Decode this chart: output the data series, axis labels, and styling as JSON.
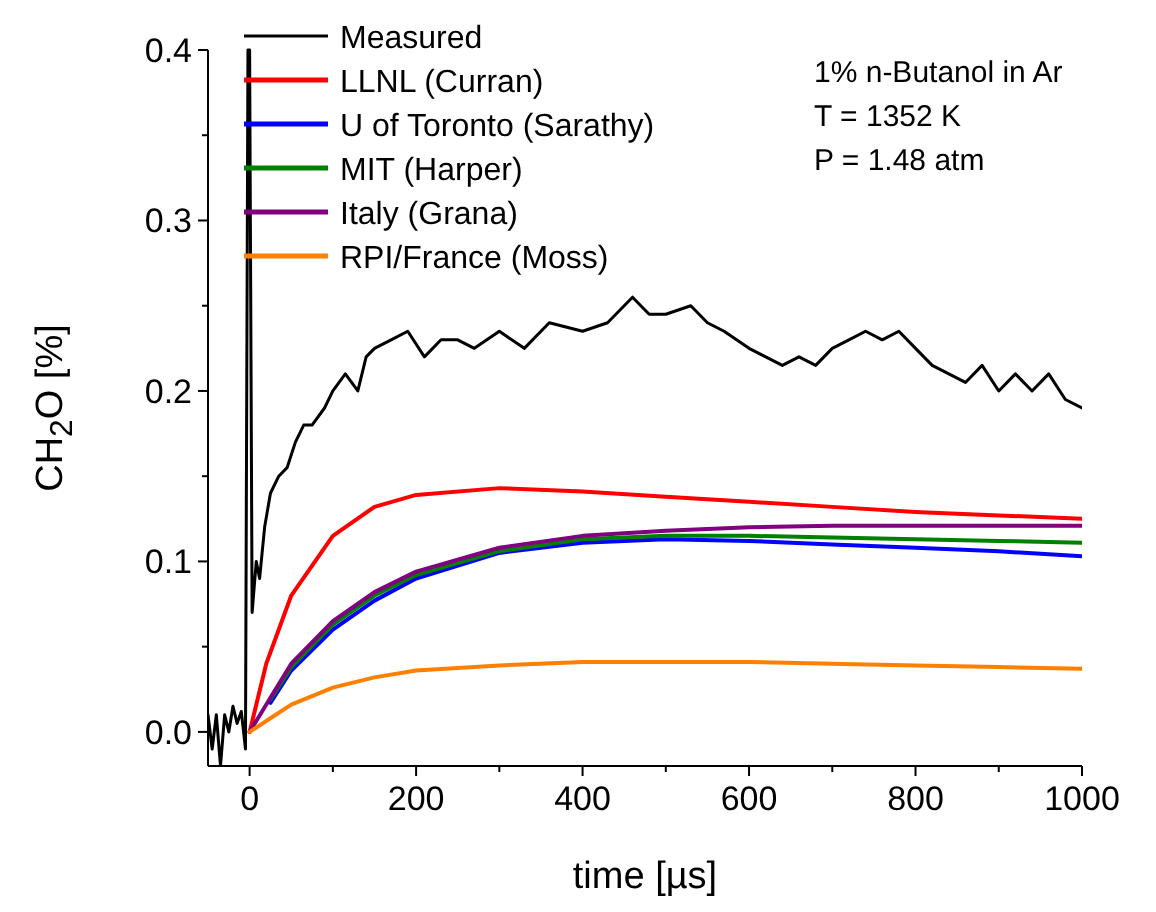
{
  "chart_data": {
    "type": "line",
    "xlabel": "time [µs]",
    "ylabel": "CH$_{2}$O [%]",
    "annotations": [
      "1% n-Butanol in Ar",
      "T = 1352 K",
      "P = 1.48 atm"
    ],
    "xlim": [
      -50,
      1000
    ],
    "ylim": [
      -0.02,
      0.4
    ],
    "xticks": [
      0,
      {
        "value": 100,
        "label": null
      },
      200,
      {
        "value": 300,
        "label": null
      },
      400,
      {
        "value": 500,
        "label": null
      },
      600,
      {
        "value": 700,
        "label": null
      },
      800,
      {
        "value": 900,
        "label": null
      },
      1000
    ],
    "yticks": [
      {
        "value": 0,
        "label": "0.0"
      },
      {
        "value": 0.05,
        "label": null
      },
      0.1,
      {
        "value": 0.15,
        "label": null
      },
      0.2,
      {
        "value": 0.25,
        "label": null
      },
      0.3,
      {
        "value": 0.35,
        "label": null
      },
      0.4
    ],
    "grid": false,
    "legend": "top left",
    "marker": "none",
    "line_style": "solid",
    "series": [
      {
        "name": "Measured",
        "color": "#000000",
        "x": [
          -50,
          -45,
          -40,
          -35,
          -30,
          -25,
          -20,
          -15,
          -10,
          -5,
          -2,
          0,
          3,
          8,
          12,
          18,
          25,
          35,
          45,
          55,
          65,
          75,
          90,
          100,
          115,
          130,
          140,
          150,
          170,
          190,
          210,
          230,
          250,
          270,
          300,
          330,
          360,
          400,
          430,
          460,
          480,
          500,
          530,
          550,
          570,
          600,
          620,
          640,
          660,
          680,
          700,
          720,
          740,
          760,
          780,
          800,
          820,
          840,
          860,
          880,
          900,
          920,
          940,
          960,
          980,
          1000
        ],
        "values": [
          0.01,
          -0.01,
          0.01,
          -0.02,
          0.01,
          0,
          0.015,
          0.005,
          0.012,
          -0.01,
          0.4,
          0.4,
          0.07,
          0.1,
          0.09,
          0.12,
          0.14,
          0.15,
          0.155,
          0.17,
          0.18,
          0.18,
          0.19,
          0.2,
          0.21,
          0.2,
          0.22,
          0.225,
          0.23,
          0.235,
          0.22,
          0.23,
          0.23,
          0.225,
          0.235,
          0.225,
          0.24,
          0.235,
          0.24,
          0.255,
          0.245,
          0.245,
          0.25,
          0.24,
          0.235,
          0.225,
          0.22,
          0.215,
          0.22,
          0.215,
          0.225,
          0.23,
          0.235,
          0.23,
          0.235,
          0.225,
          0.215,
          0.21,
          0.205,
          0.215,
          0.2,
          0.21,
          0.2,
          0.21,
          0.195,
          0.19
        ]
      },
      {
        "name": "LLNL (Curran)",
        "color": "#ff0000",
        "x": [
          0,
          20,
          50,
          100,
          150,
          200,
          300,
          400,
          500,
          600,
          700,
          800,
          900,
          1000
        ],
        "values": [
          0,
          0.04,
          0.08,
          0.115,
          0.132,
          0.139,
          0.143,
          0.141,
          0.138,
          0.135,
          0.132,
          0.129,
          0.127,
          0.125
        ]
      },
      {
        "name": "U of Toronto (Sarathy)",
        "color": "#0000ff",
        "x": [
          25,
          50,
          100,
          150,
          200,
          300,
          400,
          500,
          600,
          700,
          800,
          900,
          1000
        ],
        "values": [
          0.017,
          0.036,
          0.06,
          0.077,
          0.09,
          0.105,
          0.111,
          0.113,
          0.112,
          0.11,
          0.108,
          0.106,
          0.103
        ]
      },
      {
        "name": "MIT (Harper)",
        "color": "#008000",
        "x": [
          25,
          50,
          100,
          150,
          200,
          300,
          400,
          500,
          600,
          700,
          800,
          900,
          1000
        ],
        "values": [
          0.019,
          0.038,
          0.063,
          0.08,
          0.092,
          0.106,
          0.113,
          0.115,
          0.115,
          0.114,
          0.113,
          0.112,
          0.111
        ]
      },
      {
        "name": "Italy (Grana)",
        "color": "#800080",
        "x": [
          0,
          25,
          50,
          100,
          150,
          200,
          300,
          400,
          500,
          600,
          700,
          800,
          900,
          1000
        ],
        "values": [
          0,
          0.02,
          0.04,
          0.065,
          0.082,
          0.094,
          0.108,
          0.115,
          0.118,
          0.12,
          0.121,
          0.121,
          0.121,
          0.121
        ]
      },
      {
        "name": "RPI/France (Moss)",
        "color": "#ff8000",
        "x": [
          0,
          25,
          50,
          100,
          150,
          200,
          300,
          400,
          500,
          600,
          700,
          800,
          900,
          1000
        ],
        "values": [
          0,
          0.008,
          0.016,
          0.026,
          0.032,
          0.036,
          0.039,
          0.041,
          0.041,
          0.041,
          0.04,
          0.039,
          0.038,
          0.037
        ]
      }
    ]
  }
}
